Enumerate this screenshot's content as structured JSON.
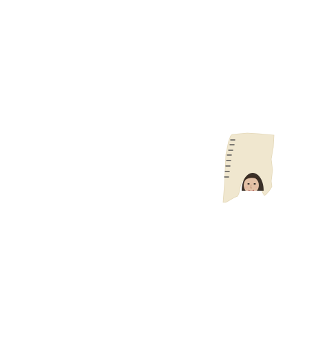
{
  "colors": {
    "background": "#ffffff",
    "paper": "#f0e7cf",
    "paper_edge": "#e4d8b8",
    "tick_marks": "#555555",
    "face_skin": "#e3c1a6",
    "face_shadow": "#b88e72",
    "hole_dark": "#2a2622"
  },
  "icons": {
    "figure": "torn-paper-figure-icon",
    "ruler": "ruler-ticks-icon",
    "face": "face-peeking-icon"
  }
}
